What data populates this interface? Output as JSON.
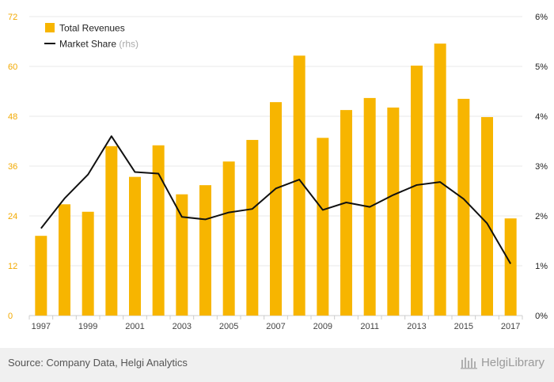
{
  "chart_data": {
    "type": "bar+line",
    "x": [
      1997,
      1998,
      1999,
      2000,
      2001,
      2002,
      2003,
      2004,
      2005,
      2006,
      2007,
      2008,
      2009,
      2010,
      2011,
      2012,
      2013,
      2014,
      2015,
      2016,
      2017
    ],
    "x_tick_labels": [
      "1997",
      "1999",
      "2001",
      "2003",
      "2005",
      "2007",
      "2009",
      "2011",
      "2013",
      "2015",
      "2017"
    ],
    "series": [
      {
        "name": "Total Revenues",
        "kind": "bar",
        "axis": "left",
        "color": "#f7b500",
        "values": [
          19.2,
          26.8,
          25.0,
          40.8,
          33.4,
          41.0,
          29.2,
          31.4,
          37.1,
          42.3,
          51.4,
          62.6,
          42.8,
          49.5,
          52.4,
          50.1,
          60.2,
          65.5,
          52.2,
          47.8,
          23.4
        ]
      },
      {
        "name": "Market Share",
        "name_suffix": "(rhs)",
        "kind": "line",
        "axis": "right",
        "color": "#111111",
        "values": [
          1.75,
          2.35,
          2.83,
          3.6,
          2.88,
          2.85,
          1.98,
          1.93,
          2.07,
          2.14,
          2.55,
          2.73,
          2.12,
          2.27,
          2.18,
          2.42,
          2.62,
          2.68,
          2.34,
          1.85,
          1.04
        ]
      }
    ],
    "y_left": {
      "ticks": [
        "0",
        "12",
        "24",
        "36",
        "48",
        "60",
        "72"
      ],
      "lim": [
        0,
        72
      ],
      "color": "#f2a900"
    },
    "y_right": {
      "ticks": [
        "0%",
        "1%",
        "2%",
        "3%",
        "4%",
        "5%",
        "6%"
      ],
      "lim": [
        0,
        6
      ]
    },
    "grid": true,
    "legend": "top-left"
  },
  "footer": {
    "source": "Source: Company Data, Helgi Analytics",
    "brand": "HelgiLibrary"
  }
}
